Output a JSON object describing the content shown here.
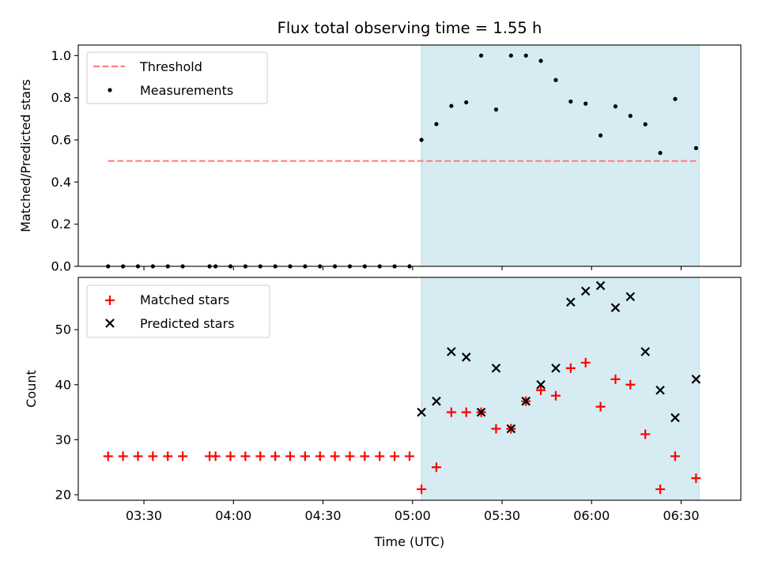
{
  "chart_data": {
    "type": "scatter",
    "title": "Flux total observing time = 1.55 h",
    "xlabel": "Time (UTC)",
    "x_tick_labels": [
      "03:30",
      "04:00",
      "04:30",
      "05:00",
      "05:30",
      "06:00",
      "06:30"
    ],
    "x_tick_values": [
      "03:30",
      "04:00",
      "04:30",
      "05:00",
      "05:30",
      "06:00",
      "06:30"
    ],
    "xlim": [
      "03:08",
      "06:50"
    ],
    "shaded_interval": {
      "start": "05:03",
      "end": "06:36",
      "color": "#add8e6"
    },
    "panels": [
      {
        "ylabel": "Matched/Predicted stars",
        "ylim": [
          0,
          1.05
        ],
        "y_tick_labels": [
          "0.0",
          "0.2",
          "0.4",
          "0.6",
          "0.8",
          "1.0"
        ],
        "y_tick_values": [
          0,
          0.2,
          0.4,
          0.6,
          0.8,
          1.0
        ],
        "legend_position": "upper-left",
        "series": [
          {
            "name": "Threshold",
            "kind": "dashed-line",
            "color": "#ff7f7f",
            "x": [
              "03:18",
              "06:35"
            ],
            "y": [
              0.5,
              0.5
            ]
          },
          {
            "name": "Measurements",
            "kind": "dots",
            "color": "#000000",
            "x": [
              "03:18",
              "03:23",
              "03:28",
              "03:33",
              "03:38",
              "03:43",
              "03:52",
              "03:54",
              "03:59",
              "04:04",
              "04:09",
              "04:14",
              "04:19",
              "04:24",
              "04:29",
              "04:34",
              "04:39",
              "04:44",
              "04:49",
              "04:54",
              "04:59",
              "05:03",
              "05:08",
              "05:13",
              "05:18",
              "05:23",
              "05:28",
              "05:33",
              "05:38",
              "05:43",
              "05:48",
              "05:53",
              "05:58",
              "06:03",
              "06:08",
              "06:13",
              "06:18",
              "06:23",
              "06:28",
              "06:35"
            ],
            "y": [
              0,
              0,
              0,
              0,
              0,
              0,
              0,
              0,
              0,
              0,
              0,
              0,
              0,
              0,
              0,
              0,
              0,
              0,
              0,
              0,
              0,
              0.6,
              0.675,
              0.761,
              0.778,
              1.0,
              0.744,
              1.0,
              1.0,
              0.975,
              0.884,
              0.782,
              0.772,
              0.621,
              0.759,
              0.714,
              0.674,
              0.538,
              0.794,
              0.561
            ]
          }
        ]
      },
      {
        "ylabel": "Count",
        "ylim": [
          19,
          59.5
        ],
        "y_tick_labels": [
          "20",
          "30",
          "40",
          "50"
        ],
        "y_tick_values": [
          20,
          30,
          40,
          50
        ],
        "legend_position": "upper-left",
        "series": [
          {
            "name": "Matched stars",
            "kind": "plus",
            "color": "#ff0000",
            "x": [
              "03:18",
              "03:23",
              "03:28",
              "03:33",
              "03:38",
              "03:43",
              "03:52",
              "03:54",
              "03:59",
              "04:04",
              "04:09",
              "04:14",
              "04:19",
              "04:24",
              "04:29",
              "04:34",
              "04:39",
              "04:44",
              "04:49",
              "04:54",
              "04:59",
              "05:03",
              "05:08",
              "05:13",
              "05:18",
              "05:23",
              "05:28",
              "05:33",
              "05:38",
              "05:43",
              "05:48",
              "05:53",
              "05:58",
              "06:03",
              "06:08",
              "06:13",
              "06:18",
              "06:23",
              "06:28",
              "06:35"
            ],
            "y": [
              27,
              27,
              27,
              27,
              27,
              27,
              27,
              27,
              27,
              27,
              27,
              27,
              27,
              27,
              27,
              27,
              27,
              27,
              27,
              27,
              27,
              21,
              25,
              35,
              35,
              35,
              32,
              32,
              37,
              39,
              38,
              43,
              44,
              36,
              41,
              40,
              31,
              21,
              27,
              23
            ]
          },
          {
            "name": "Predicted stars",
            "kind": "x",
            "color": "#000000",
            "x": [
              "05:03",
              "05:08",
              "05:13",
              "05:18",
              "05:23",
              "05:28",
              "05:33",
              "05:38",
              "05:43",
              "05:48",
              "05:53",
              "05:58",
              "06:03",
              "06:08",
              "06:13",
              "06:18",
              "06:23",
              "06:28",
              "06:35"
            ],
            "y": [
              35,
              37,
              46,
              45,
              35,
              43,
              32,
              37,
              40,
              43,
              55,
              57,
              58,
              54,
              56,
              46,
              39,
              34,
              41
            ]
          }
        ]
      }
    ]
  }
}
